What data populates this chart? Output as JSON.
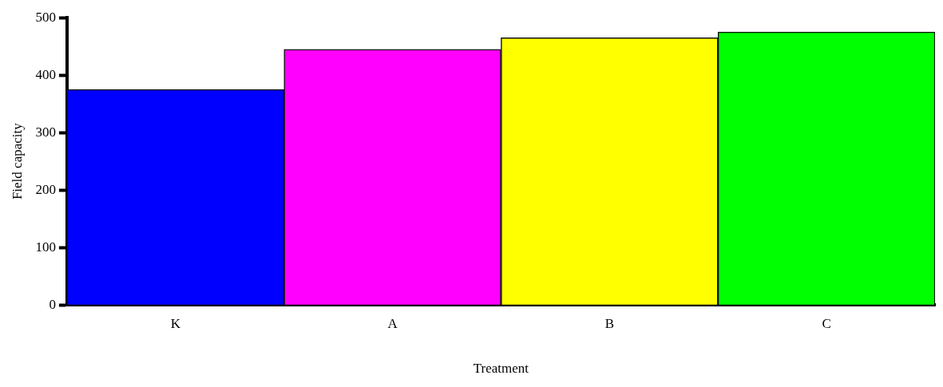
{
  "chart_data": {
    "type": "bar",
    "xlabel": "Treatment",
    "ylabel": "Field capacity",
    "categories": [
      "K",
      "A",
      "B",
      "C"
    ],
    "values": [
      375,
      445,
      465,
      475
    ],
    "colors": [
      "#0000ff",
      "#ff00ff",
      "#ffff00",
      "#00ff00"
    ],
    "ylim": [
      0,
      500
    ],
    "yticks": [
      0,
      100,
      200,
      300,
      400,
      500
    ],
    "grid": false,
    "legend": false
  }
}
